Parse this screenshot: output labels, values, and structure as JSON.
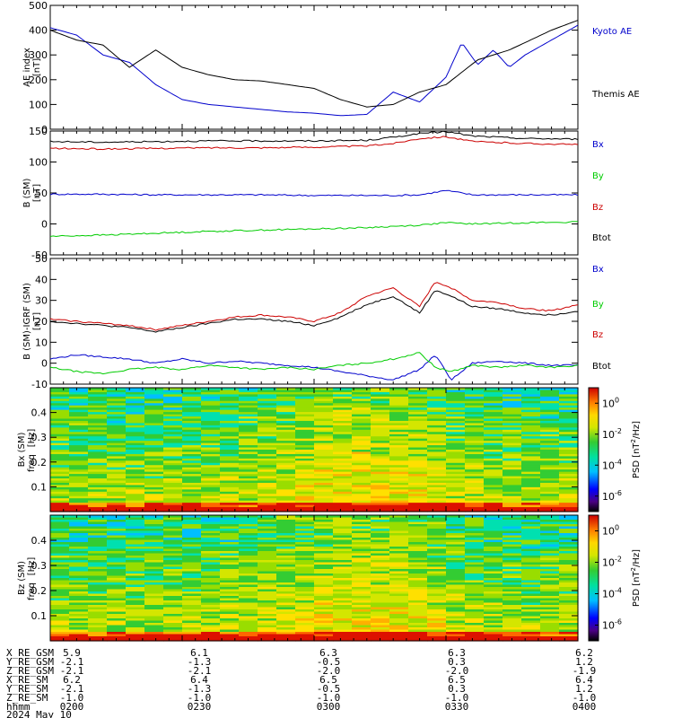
{
  "chart_data": [
    {
      "type": "line",
      "panel": "ae-index",
      "ylabel": "AE index",
      "yunit": "[nT]",
      "ylim": [
        0,
        500
      ],
      "yticks": [
        "500",
        "400",
        "300",
        "200",
        "100",
        "0"
      ],
      "x": [
        0.0,
        0.05,
        0.1,
        0.15,
        0.2,
        0.25,
        0.3,
        0.35,
        0.4,
        0.45,
        0.5,
        0.55,
        0.6,
        0.65,
        0.7,
        0.75,
        0.78,
        0.81,
        0.84,
        0.87,
        0.9,
        0.95,
        1.0
      ],
      "series": [
        {
          "name": "Kyoto AE",
          "color": "#0000cc",
          "values": [
            410,
            380,
            300,
            270,
            180,
            120,
            100,
            90,
            80,
            70,
            65,
            55,
            60,
            150,
            110,
            210,
            350,
            260,
            320,
            250,
            300,
            360,
            420
          ]
        },
        {
          "name": "Themis AE",
          "color": "#000000",
          "values": [
            400,
            360,
            340,
            250,
            320,
            250,
            220,
            200,
            195,
            180,
            165,
            120,
            90,
            100,
            150,
            180,
            230,
            280,
            300,
            320,
            350,
            400,
            440
          ]
        }
      ],
      "grid": false
    },
    {
      "type": "line",
      "panel": "b-sm",
      "ylabel": "B (SM)",
      "yunit": "[nT]",
      "ylim": [
        -50,
        150
      ],
      "yticks": [
        "150",
        "100",
        "50",
        "0",
        "-50"
      ],
      "legend": [
        "Bx",
        "By",
        "Bz",
        "Btot"
      ],
      "legend_colors": [
        "#0000cc",
        "#00cc00",
        "#cc0000",
        "#000000"
      ],
      "x": [
        0.0,
        0.1,
        0.2,
        0.3,
        0.4,
        0.5,
        0.6,
        0.65,
        0.7,
        0.75,
        0.8,
        0.9,
        1.0
      ],
      "series": [
        {
          "name": "Bx",
          "color": "#0000cc",
          "values": [
            48,
            48,
            47,
            47,
            47,
            46,
            46,
            46,
            47,
            54,
            47,
            47,
            47
          ]
        },
        {
          "name": "By",
          "color": "#00cc00",
          "values": [
            -20,
            -18,
            -15,
            -12,
            -10,
            -8,
            -6,
            -4,
            -2,
            2,
            0,
            2,
            3
          ]
        },
        {
          "name": "Bz",
          "color": "#cc0000",
          "values": [
            122,
            121,
            122,
            123,
            123,
            124,
            126,
            130,
            138,
            141,
            133,
            130,
            128
          ]
        },
        {
          "name": "Btot",
          "color": "#000000",
          "values": [
            133,
            132,
            133,
            134,
            134,
            134,
            135,
            140,
            146,
            149,
            142,
            138,
            137
          ]
        }
      ],
      "grid": false
    },
    {
      "type": "line",
      "panel": "db-sm",
      "ylabel": "B (SM)-IGRF (SM)",
      "yunit": "[nT]",
      "ylim": [
        -10,
        50
      ],
      "yticks": [
        "50",
        "40",
        "30",
        "20",
        "10",
        "0",
        "-10"
      ],
      "legend": [
        "Bx",
        "By",
        "Bz",
        "Btot"
      ],
      "legend_colors": [
        "#0000cc",
        "#00cc00",
        "#cc0000",
        "#000000"
      ],
      "x": [
        0.0,
        0.05,
        0.1,
        0.15,
        0.2,
        0.25,
        0.3,
        0.35,
        0.4,
        0.45,
        0.5,
        0.55,
        0.6,
        0.65,
        0.7,
        0.73,
        0.76,
        0.8,
        0.85,
        0.9,
        0.95,
        1.0
      ],
      "series": [
        {
          "name": "Bx",
          "color": "#0000cc",
          "values": [
            2,
            4,
            3,
            2,
            0,
            2,
            0,
            1,
            0,
            -1,
            -2,
            -4,
            -6,
            -8,
            -3,
            4,
            -8,
            0,
            1,
            0,
            -1,
            -1
          ]
        },
        {
          "name": "By",
          "color": "#00cc00",
          "values": [
            -2,
            -4,
            -5,
            -3,
            -2,
            -3,
            -1,
            -2,
            -3,
            -2,
            -3,
            -1,
            0,
            2,
            5,
            -2,
            -4,
            -1,
            -2,
            -1,
            -2,
            -1
          ]
        },
        {
          "name": "Bz",
          "color": "#cc0000",
          "values": [
            21,
            20,
            19,
            18,
            16,
            18,
            20,
            22,
            23,
            22,
            20,
            24,
            32,
            36,
            27,
            39,
            36,
            30,
            29,
            26,
            25,
            28
          ]
        },
        {
          "name": "Btot",
          "color": "#000000",
          "values": [
            20,
            19,
            18,
            17,
            15,
            17,
            19,
            21,
            21,
            20,
            18,
            22,
            28,
            32,
            24,
            35,
            32,
            27,
            26,
            24,
            23,
            25
          ]
        }
      ],
      "grid": false
    },
    {
      "type": "heatmap",
      "panel": "bx-spectrum",
      "ylabel": "Bx (SM)",
      "ylabel2": "freq",
      "yunit": "[Hz]",
      "ylim": [
        0,
        0.5
      ],
      "yticks": [
        "0.4",
        "0.3",
        "0.2",
        "0.1"
      ],
      "colorbar_label": "PSD [nT",
      "colorbar_label_sup": "2",
      "colorbar_label_end": "/Hz]",
      "colorbar_ticks": [
        "10",
        "10",
        "10",
        "10"
      ],
      "colorbar_exps": [
        "0",
        "-2",
        "-4",
        "-6"
      ],
      "colorbar_log_range": [
        -7,
        1
      ],
      "grid": false
    },
    {
      "type": "heatmap",
      "panel": "bz-spectrum",
      "ylabel": "Bz (SM)",
      "ylabel2": "freq",
      "yunit": "[Hz]",
      "ylim": [
        0,
        0.5
      ],
      "yticks": [
        "0.4",
        "0.3",
        "0.2",
        "0.1"
      ],
      "colorbar_label": "PSD [nT",
      "colorbar_label_sup": "2",
      "colorbar_label_end": "/Hz]",
      "colorbar_ticks": [
        "10",
        "10",
        "10",
        "10"
      ],
      "colorbar_exps": [
        "0",
        "-2",
        "-4",
        "-6"
      ],
      "colorbar_log_range": [
        -7,
        1
      ],
      "grid": false
    }
  ],
  "ephemeris": {
    "labels": [
      "X_RE_GSM",
      "Y_RE_GSM",
      "Z_RE_GSM",
      "X_RE_SM",
      "Y_RE_SM",
      "Z_RE_SM",
      "hhmm",
      "2024 May 10"
    ],
    "columns": [
      [
        "5.9",
        "-2.1",
        "-2.1",
        "6.2",
        "-2.1",
        "-1.0",
        "0200"
      ],
      [
        "6.1",
        "-1.3",
        "-2.1",
        "6.4",
        "-1.3",
        "-1.0",
        "0230"
      ],
      [
        "6.3",
        "-0.5",
        "-2.0",
        "6.5",
        "-0.5",
        "-1.0",
        "0300"
      ],
      [
        "6.3",
        "0.3",
        "-2.0",
        "6.5",
        "0.3",
        "-1.0",
        "0330"
      ],
      [
        "6.2",
        "1.2",
        "-1.9",
        "6.4",
        "1.2",
        "-1.0",
        "0400"
      ]
    ]
  }
}
